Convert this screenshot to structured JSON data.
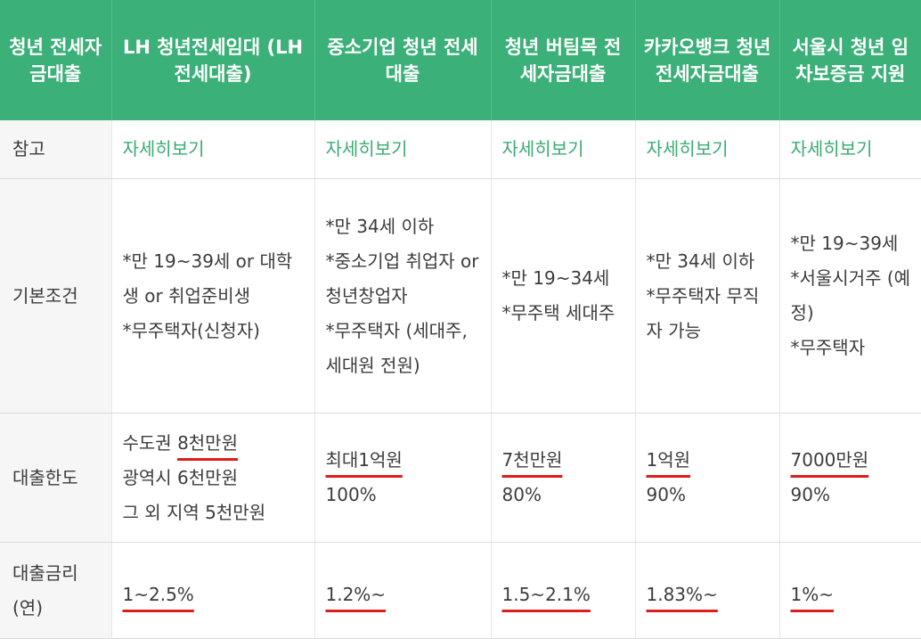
{
  "header": {
    "col0": "청년 전세자금대출",
    "col1": "LH 청년전세임대 (LH 전세대출)",
    "col2": "중소기업 청년 전세대출",
    "col3": "청년 버팀목 전세자금대출",
    "col4": "카카오뱅크 청년 전세자금대출",
    "col5": "서울시 청년 임차보증금 지원"
  },
  "rows": {
    "reference": {
      "label": "참고",
      "link_label": "자세히보기"
    },
    "conditions": {
      "label": "기본조건",
      "lh": [
        "*만 19~39세 or 대학생 or 취업준비생",
        "*무주택자(신청자)"
      ],
      "sme": [
        "*만 34세 이하",
        "*중소기업 취업자 or 청년창업자",
        "*무주택자 (세대주, 세대원 전원)"
      ],
      "beotimmok": [
        "*만 19~34세",
        "*무주택 세대주"
      ],
      "kakao": [
        "*만 34세 이하",
        "*무주택자 무직자 가능"
      ],
      "seoul": [
        "*만 19~39세",
        "*서울시거주 (예정)",
        "*무주택자"
      ]
    },
    "limit": {
      "label": "대출한도",
      "lh": {
        "line1_prefix": "수도권 ",
        "line1_amount": "8천만원",
        "line2": "광역시 6천만원",
        "line3": "그 외 지역 5천만원"
      },
      "sme": {
        "amount": "최대1억원",
        "ratio": "100%"
      },
      "beotimmok": {
        "amount": "7천만원",
        "ratio": "80%"
      },
      "kakao": {
        "amount": "1억원",
        "ratio": "90%"
      },
      "seoul": {
        "amount": "7000만원",
        "ratio": "90%"
      }
    },
    "rate": {
      "label_line1": "대출금리",
      "label_line2": "(연)",
      "lh": "1~2.5%",
      "sme": "1.2%~",
      "beotimmok": "1.5~2.1%",
      "kakao": "1.83%~",
      "seoul": "1%~"
    }
  },
  "colors": {
    "header_bg": "#3bb078",
    "link": "#3bab72",
    "underline": "#e01b1b",
    "label_bg": "#f6f6f6"
  }
}
